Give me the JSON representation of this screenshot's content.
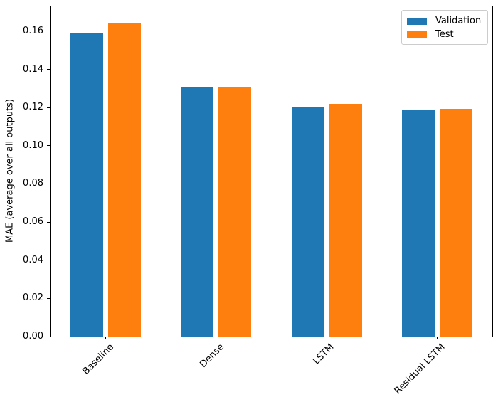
{
  "chart_data": {
    "type": "bar",
    "title": "",
    "xlabel": "",
    "ylabel": "MAE (average over all outputs)",
    "categories": [
      "Baseline",
      "Dense",
      "LSTM",
      "Residual LSTM"
    ],
    "series": [
      {
        "name": "Validation",
        "color": "#1f77b4",
        "values": [
          0.159,
          0.131,
          0.1205,
          0.1185
        ]
      },
      {
        "name": "Test",
        "color": "#ff7f0e",
        "values": [
          0.164,
          0.131,
          0.122,
          0.1195
        ]
      }
    ],
    "ylim": [
      0,
      0.173
    ],
    "yticks": [
      0.0,
      0.02,
      0.04,
      0.06,
      0.08,
      0.1,
      0.12,
      0.14,
      0.16
    ],
    "ytick_labels": [
      "0.00",
      "0.02",
      "0.04",
      "0.06",
      "0.08",
      "0.10",
      "0.12",
      "0.14",
      "0.16"
    ],
    "xtick_rotation": 45,
    "grid": false,
    "legend_position": "upper right"
  }
}
